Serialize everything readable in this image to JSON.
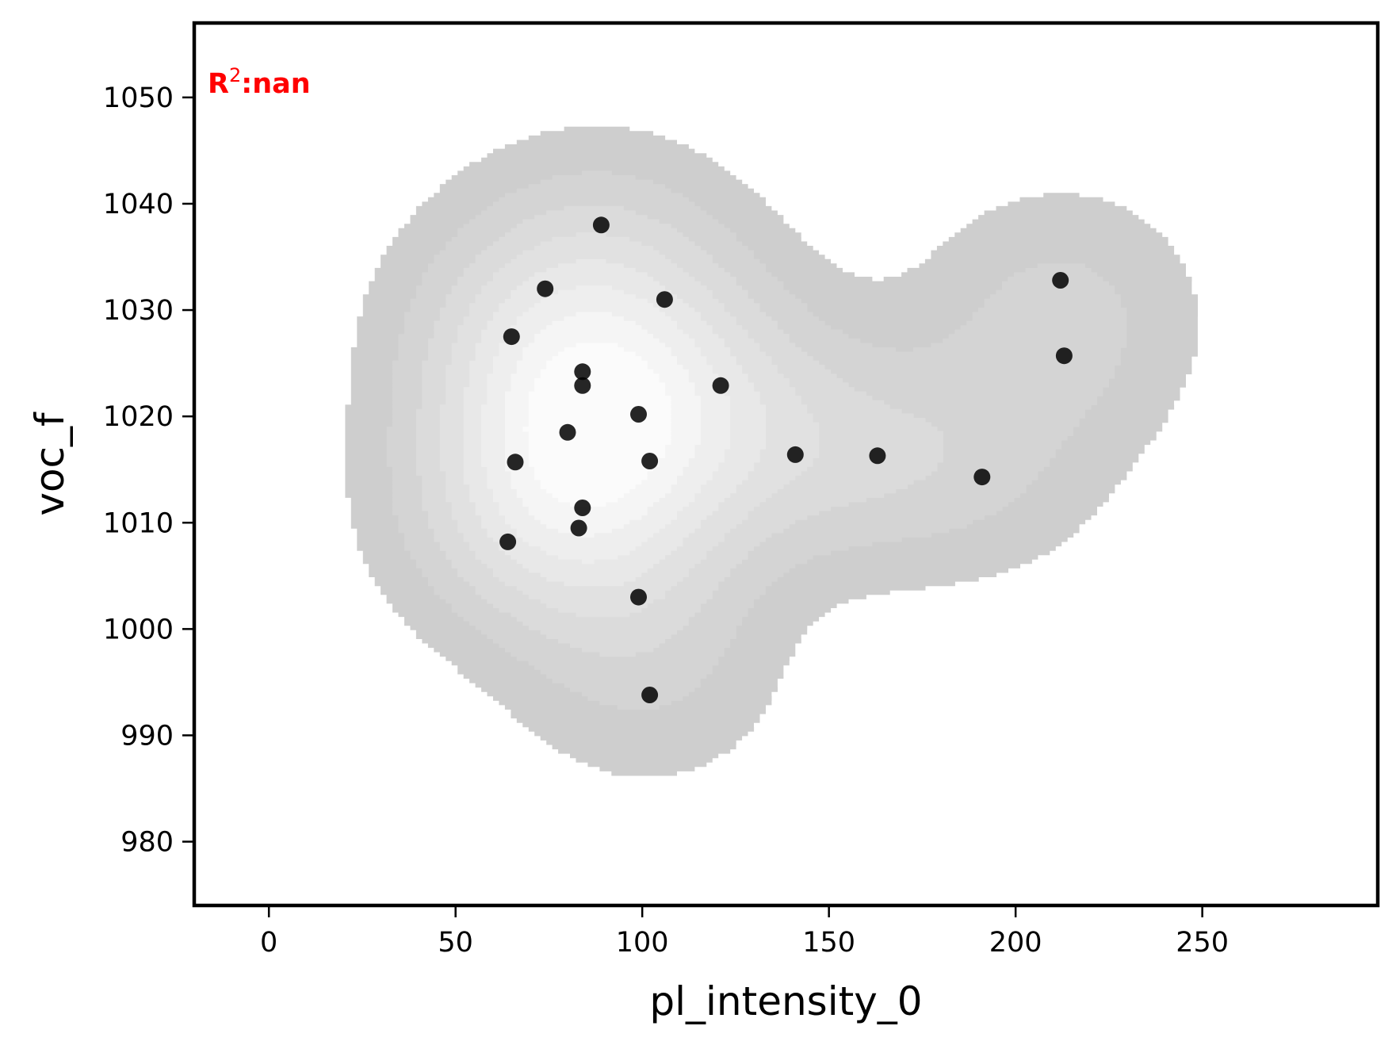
{
  "chart_data": {
    "type": "scatter",
    "xlabel": "pl_intensity_0",
    "ylabel": "voc_f",
    "xlim": [
      -20,
      297
    ],
    "ylim": [
      974,
      1057
    ],
    "xticks": [
      0,
      50,
      100,
      150,
      200,
      250
    ],
    "yticks": [
      980,
      990,
      1000,
      1010,
      1020,
      1030,
      1040,
      1050
    ],
    "annotation": {
      "prefix": "R",
      "superscript": "2",
      "suffix": ":nan",
      "color": "#ff0000",
      "placement": "top-left"
    },
    "grid": false,
    "legend": "none",
    "points": [
      {
        "x": 89,
        "y": 1038
      },
      {
        "x": 74,
        "y": 1032
      },
      {
        "x": 106,
        "y": 1031
      },
      {
        "x": 65,
        "y": 1027.5
      },
      {
        "x": 84,
        "y": 1024.2
      },
      {
        "x": 84,
        "y": 1022.9
      },
      {
        "x": 121,
        "y": 1022.9
      },
      {
        "x": 99,
        "y": 1020.2
      },
      {
        "x": 80,
        "y": 1018.5
      },
      {
        "x": 66,
        "y": 1015.7
      },
      {
        "x": 102,
        "y": 1015.8
      },
      {
        "x": 141,
        "y": 1016.4
      },
      {
        "x": 163,
        "y": 1016.3
      },
      {
        "x": 84,
        "y": 1011.4
      },
      {
        "x": 83,
        "y": 1009.5
      },
      {
        "x": 64,
        "y": 1008.2
      },
      {
        "x": 99,
        "y": 1003
      },
      {
        "x": 102,
        "y": 993.8
      },
      {
        "x": 191,
        "y": 1014.3
      },
      {
        "x": 212,
        "y": 1032.8
      },
      {
        "x": 213,
        "y": 1025.7
      }
    ],
    "density": {
      "style": "filled contours",
      "bandwidth_x": 26,
      "bandwidth_y": 7.5,
      "levels": 8,
      "outer_color": "#cecece",
      "inner_color": "#fbfbfb",
      "line_color": "#a8a8a8"
    },
    "point_color": "#000000",
    "point_opacity": 0.85
  }
}
